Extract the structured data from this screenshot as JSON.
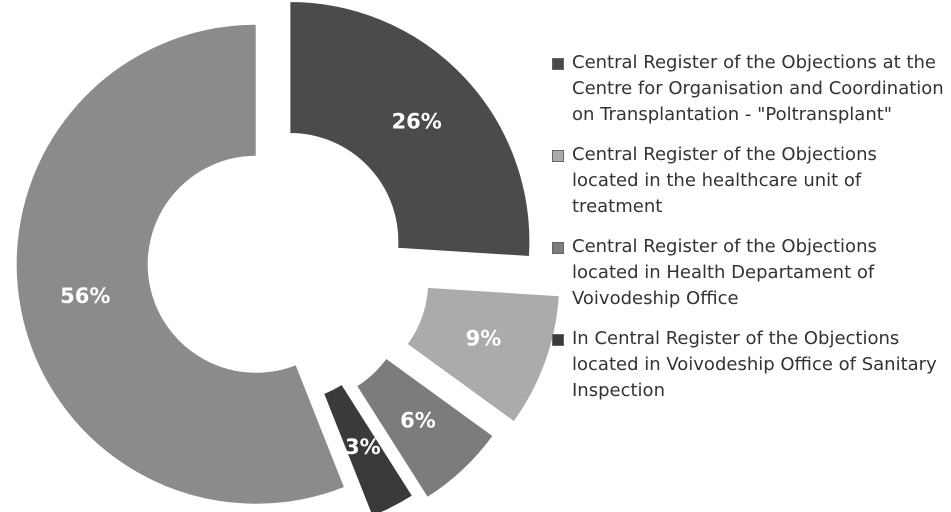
{
  "chart_data": {
    "type": "donut",
    "categories": [
      "Central Register of the Objections at the Centre for Organisation and Coordination on Transplantation - \"Poltransplant\"",
      "Central Register of the Objections located in the healthcare unit of treatment",
      "Central Register of the Objections located in Health Departament of Voivodeship Office",
      "In Central Register of the Objections located in Voivodeship Office of Sanitary Inspection",
      null
    ],
    "values": [
      26,
      9,
      6,
      3,
      56
    ],
    "value_labels": [
      "26%",
      "9%",
      "6%",
      "3%",
      "56%"
    ],
    "colors": [
      "#4b4b4b",
      "#ababab",
      "#7c7c7c",
      "#3a3a3a",
      "#8b8b8b"
    ],
    "legend": "right"
  }
}
